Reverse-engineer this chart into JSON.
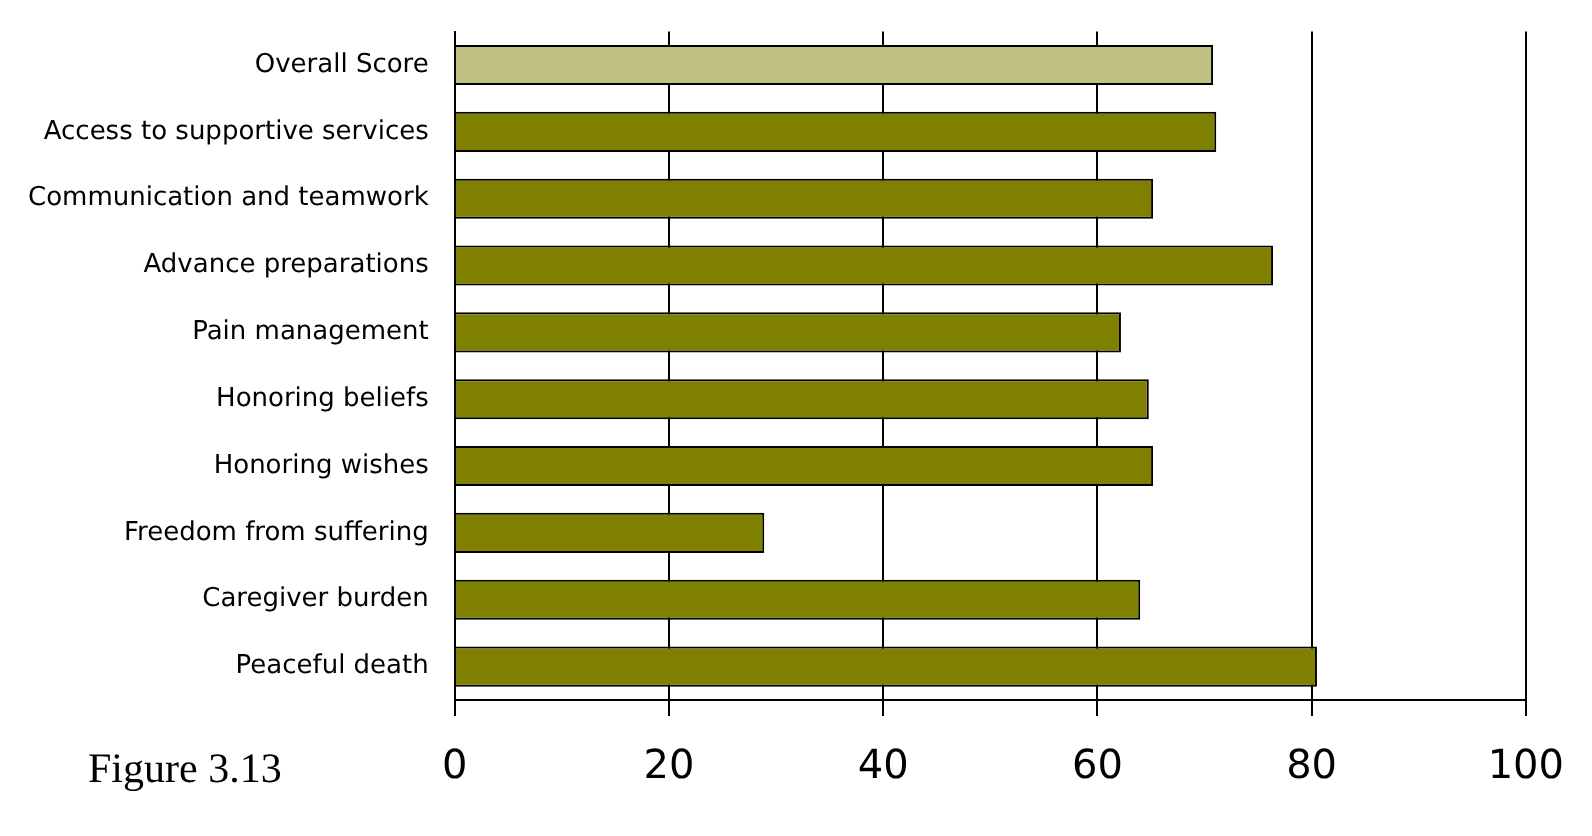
{
  "chart_data": {
    "type": "bar",
    "orientation": "horizontal",
    "categories": [
      "Overall Score",
      "Access to supportive services",
      "Communication and teamwork",
      "Advance preparations",
      "Pain management",
      "Honoring beliefs",
      "Honoring wishes",
      "Freedom from suffering",
      "Caregiver burden",
      "Peaceful death"
    ],
    "values": [
      70.8,
      71.1,
      65.2,
      76.4,
      62.2,
      64.8,
      65.2,
      28.9,
      64.0,
      80.5
    ],
    "colors": [
      "#c0c080",
      "#808000",
      "#808000",
      "#808000",
      "#808000",
      "#808000",
      "#808000",
      "#808000",
      "#808000",
      "#808000"
    ],
    "xlim": [
      0,
      100
    ],
    "xticks": [
      0,
      20,
      40,
      60,
      80,
      100
    ],
    "grid": "x",
    "legend": false,
    "annotations": [
      "Figure 3.13"
    ]
  }
}
